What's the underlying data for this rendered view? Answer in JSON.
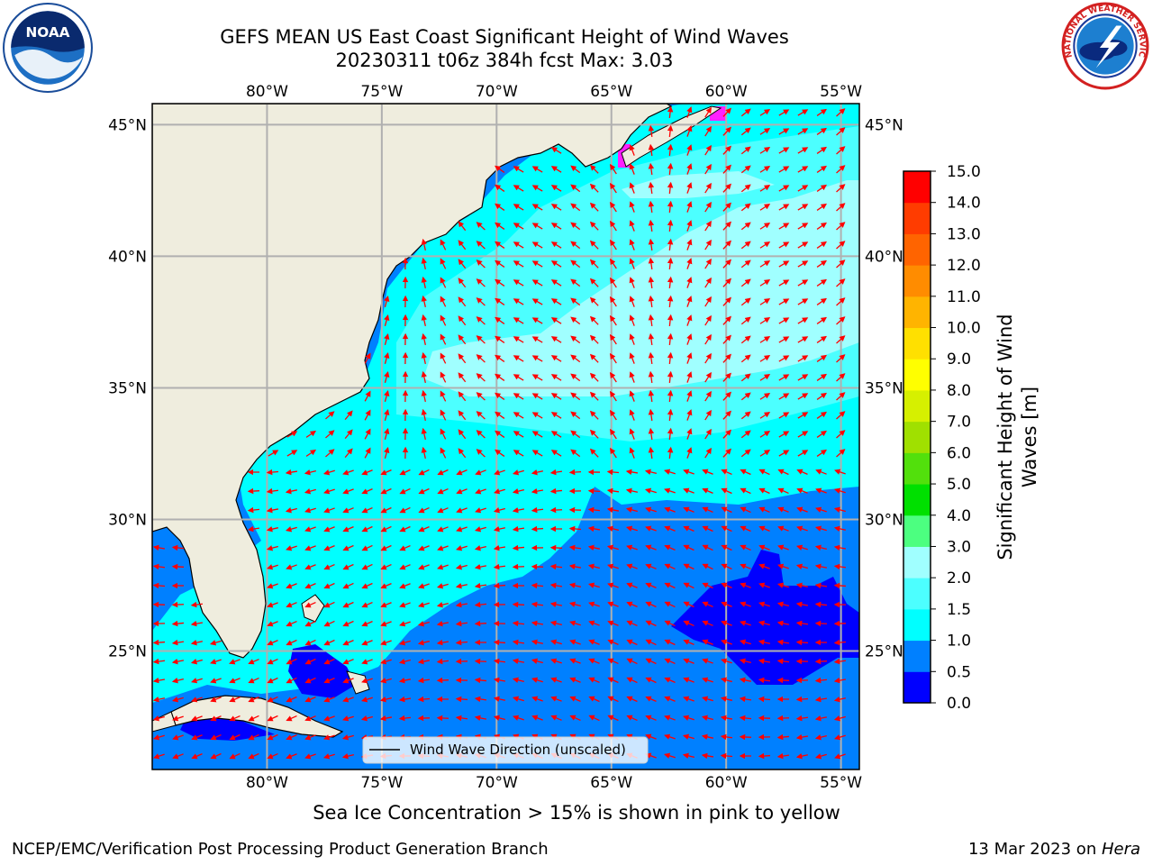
{
  "header": {
    "title_line1": "GEFS MEAN US East Coast Significant Height of Wind Waves",
    "title_line2": "20230311 t06z 384h fcst   Max: 3.03"
  },
  "logos": {
    "left": "noaa-logo",
    "left_text": "NOAA",
    "right": "nws-logo",
    "right_text": "NATIONAL WEATHER SERVICE"
  },
  "map": {
    "lon_labels": [
      "80°W",
      "75°W",
      "70°W",
      "65°W",
      "60°W",
      "55°W"
    ],
    "lat_labels": [
      "45°N",
      "40°N",
      "35°N",
      "30°N",
      "25°N"
    ],
    "lon_values": [
      -80,
      -75,
      -70,
      -65,
      -60,
      -55
    ],
    "lat_values": [
      45,
      40,
      35,
      30,
      25
    ],
    "extent": {
      "lon_min": -85,
      "lon_max": -54.2,
      "lat_min": 20.5,
      "lat_max": 45.8
    },
    "colors": {
      "land": "#efedde",
      "grid": "#b0b0b0",
      "arrow": "#ff0000",
      "coast": "#000000"
    },
    "legend_label": "Wind Wave Direction (unscaled)"
  },
  "colorbar": {
    "label_line1": "Significant Height of Wind",
    "label_line2": "Waves [m]",
    "ticks": [
      "0.0",
      "0.5",
      "1.0",
      "1.5",
      "2.0",
      "3.0",
      "4.0",
      "5.0",
      "6.0",
      "7.0",
      "8.0",
      "9.0",
      "10.0",
      "11.0",
      "12.0",
      "13.0",
      "14.0",
      "15.0"
    ],
    "colors": [
      "#0000ff",
      "#0080ff",
      "#00ffff",
      "#4cffff",
      "#a0ffff",
      "#4cff80",
      "#00e000",
      "#52e00c",
      "#a0e000",
      "#d6f000",
      "#ffff00",
      "#ffe000",
      "#ffb400",
      "#ff8c00",
      "#ff6400",
      "#ff3c00",
      "#ff0000"
    ]
  },
  "footer": {
    "ice_note": "Sea Ice Concentration > 15% is shown in pink to yellow",
    "left": "NCEP/EMC/Verification Post Processing Product Generation Branch",
    "right_prefix": "13 Mar 2023 on ",
    "right_machine": "Hera"
  }
}
